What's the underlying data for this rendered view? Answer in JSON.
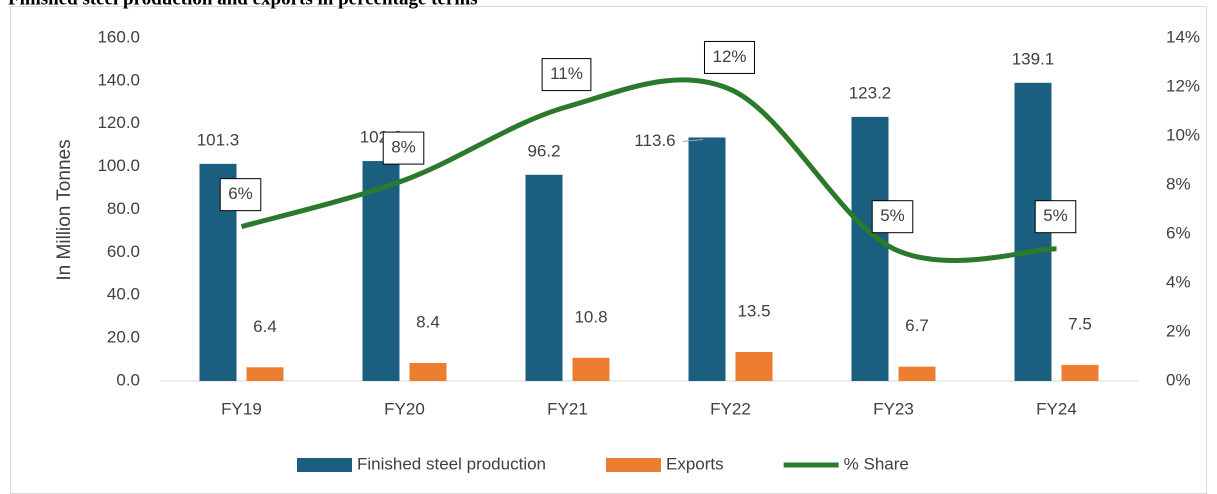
{
  "chart_data": {
    "type": "bar",
    "title": "Finished steel production and exports in percentage terms",
    "y_label": "In Million Tonnes",
    "categories": [
      "FY19",
      "FY20",
      "FY21",
      "FY22",
      "FY23",
      "FY24"
    ],
    "series": [
      {
        "name": "Finished steel production",
        "color": "#1a5f80",
        "values": [
          101.3,
          102.6,
          96.2,
          113.6,
          123.2,
          139.1
        ]
      },
      {
        "name": "Exports",
        "color": "#ed7d31",
        "values": [
          6.4,
          8.4,
          10.8,
          13.5,
          6.7,
          7.5
        ]
      },
      {
        "name": "% Share",
        "color": "#2b7a2b",
        "type": "line",
        "axis": "y2",
        "values": [
          6.3,
          8.2,
          11.2,
          11.9,
          5.4,
          5.4
        ],
        "value_labels": [
          "6%",
          "8%",
          "11%",
          "12%",
          "5%",
          "5%"
        ]
      }
    ],
    "ylim": [
      0,
      160
    ],
    "yticks": [
      {
        "value": 0,
        "label": "0.0"
      },
      {
        "value": 20,
        "label": "20.0"
      },
      {
        "value": 40,
        "label": "40.0"
      },
      {
        "value": 60,
        "label": "60.0"
      },
      {
        "value": 80,
        "label": "80.0"
      },
      {
        "value": 100,
        "label": "100.0"
      },
      {
        "value": 120,
        "label": "120.0"
      },
      {
        "value": 140,
        "label": "140.0"
      },
      {
        "value": 160,
        "label": "160.0"
      }
    ],
    "y2lim": [
      0,
      14
    ],
    "y2ticks": [
      {
        "value": 0,
        "label": "0%"
      },
      {
        "value": 2,
        "label": "2%"
      },
      {
        "value": 4,
        "label": "4%"
      },
      {
        "value": 6,
        "label": "6%"
      },
      {
        "value": 8,
        "label": "8%"
      },
      {
        "value": 10,
        "label": "10%"
      },
      {
        "value": 12,
        "label": "12%"
      },
      {
        "value": 14,
        "label": "14%"
      }
    ],
    "legend": "bottom"
  }
}
